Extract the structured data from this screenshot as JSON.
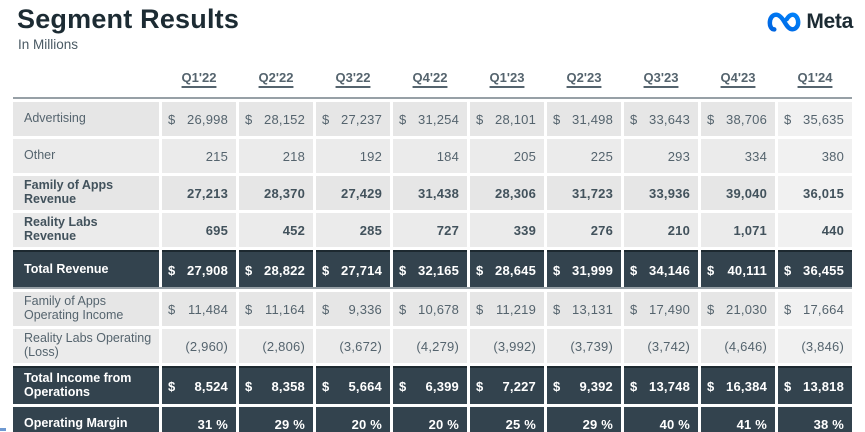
{
  "page": {
    "title": "Segment Results",
    "subtitle": "In Millions",
    "logo_text": "Meta"
  },
  "colors": {
    "dark_row": "#33434e",
    "dark_row_border": "#1d2930",
    "light_cell": "#e6e6e6",
    "light_cell_alt": "#ebebeb",
    "highlight_cell": "#f1f1f1",
    "header_rule": "#97a0a6",
    "text": "#55646e",
    "text_bold": "#42525c",
    "title_text": "#1c2b33",
    "logo_blue_start": "#0064e0",
    "logo_blue_end": "#0082fb"
  },
  "table": {
    "quarters": [
      "Q1'22",
      "Q2'22",
      "Q3'22",
      "Q4'22",
      "Q1'23",
      "Q2'23",
      "Q3'23",
      "Q4'23",
      "Q1'24"
    ],
    "revenue_section": {
      "rows": [
        {
          "label": "Advertising",
          "dollar": true,
          "bold": false,
          "dark": false,
          "total": false,
          "values": [
            "26,998",
            "28,152",
            "27,237",
            "31,254",
            "28,101",
            "31,498",
            "33,643",
            "38,706",
            "35,635"
          ]
        },
        {
          "label": "Other",
          "dollar": false,
          "bold": false,
          "dark": false,
          "total": false,
          "values": [
            "215",
            "218",
            "192",
            "184",
            "205",
            "225",
            "293",
            "334",
            "380"
          ]
        },
        {
          "label": "Family of Apps Revenue",
          "dollar": false,
          "bold": true,
          "dark": false,
          "total": false,
          "values": [
            "27,213",
            "28,370",
            "27,429",
            "31,438",
            "28,306",
            "31,723",
            "33,936",
            "39,040",
            "36,015"
          ]
        },
        {
          "label": "Reality Labs Revenue",
          "dollar": false,
          "bold": true,
          "dark": false,
          "total": false,
          "values": [
            "695",
            "452",
            "285",
            "727",
            "339",
            "276",
            "210",
            "1,071",
            "440"
          ]
        },
        {
          "label": "Total Revenue",
          "dollar": true,
          "bold": true,
          "dark": true,
          "total": true,
          "values": [
            "27,908",
            "28,822",
            "27,714",
            "32,165",
            "28,645",
            "31,999",
            "34,146",
            "40,111",
            "36,455"
          ]
        }
      ]
    },
    "income_section": {
      "rows": [
        {
          "label": "Family of Apps Operating Income",
          "dollar": true,
          "bold": false,
          "dark": false,
          "total": false,
          "values": [
            "11,484",
            "11,164",
            "9,336",
            "10,678",
            "11,219",
            "13,131",
            "17,490",
            "21,030",
            "17,664"
          ]
        },
        {
          "label": "Reality Labs Operating (Loss)",
          "dollar": false,
          "bold": false,
          "dark": false,
          "total": false,
          "values": [
            "(2,960)",
            "(2,806)",
            "(3,672)",
            "(4,279)",
            "(3,992)",
            "(3,739)",
            "(3,742)",
            "(4,646)",
            "(3,846)"
          ]
        },
        {
          "label": "Total Income from Operations",
          "dollar": true,
          "bold": true,
          "dark": true,
          "total": true,
          "values": [
            "8,524",
            "8,358",
            "5,664",
            "6,399",
            "7,227",
            "9,392",
            "13,748",
            "16,384",
            "13,818"
          ]
        },
        {
          "label": "Operating Margin",
          "dollar": false,
          "bold": true,
          "dark": true,
          "total": false,
          "values": [
            "31 %",
            "29 %",
            "20 %",
            "20 %",
            "25 %",
            "29 %",
            "40 %",
            "41 %",
            "38 %"
          ]
        }
      ]
    }
  },
  "chart_data": {
    "type": "table",
    "title": "Segment Results",
    "units": "In Millions",
    "columns": [
      "Q1'22",
      "Q2'22",
      "Q3'22",
      "Q4'22",
      "Q1'23",
      "Q2'23",
      "Q3'23",
      "Q4'23",
      "Q1'24"
    ],
    "rows": [
      {
        "label": "Advertising",
        "values": [
          26998,
          28152,
          27237,
          31254,
          28101,
          31498,
          33643,
          38706,
          35635
        ]
      },
      {
        "label": "Other",
        "values": [
          215,
          218,
          192,
          184,
          205,
          225,
          293,
          334,
          380
        ]
      },
      {
        "label": "Family of Apps Revenue",
        "values": [
          27213,
          28370,
          27429,
          31438,
          28306,
          31723,
          33936,
          39040,
          36015
        ]
      },
      {
        "label": "Reality Labs Revenue",
        "values": [
          695,
          452,
          285,
          727,
          339,
          276,
          210,
          1071,
          440
        ]
      },
      {
        "label": "Total Revenue",
        "values": [
          27908,
          28822,
          27714,
          32165,
          28645,
          31999,
          34146,
          40111,
          36455
        ]
      },
      {
        "label": "Family of Apps Operating Income",
        "values": [
          11484,
          11164,
          9336,
          10678,
          11219,
          13131,
          17490,
          21030,
          17664
        ]
      },
      {
        "label": "Reality Labs Operating (Loss)",
        "values": [
          -2960,
          -2806,
          -3672,
          -4279,
          -3992,
          -3739,
          -3742,
          -4646,
          -3846
        ]
      },
      {
        "label": "Total Income from Operations",
        "values": [
          8524,
          8358,
          5664,
          6399,
          7227,
          9392,
          13748,
          16384,
          13818
        ]
      },
      {
        "label": "Operating Margin (%)",
        "values": [
          31,
          29,
          20,
          20,
          25,
          29,
          40,
          41,
          38
        ]
      }
    ]
  }
}
